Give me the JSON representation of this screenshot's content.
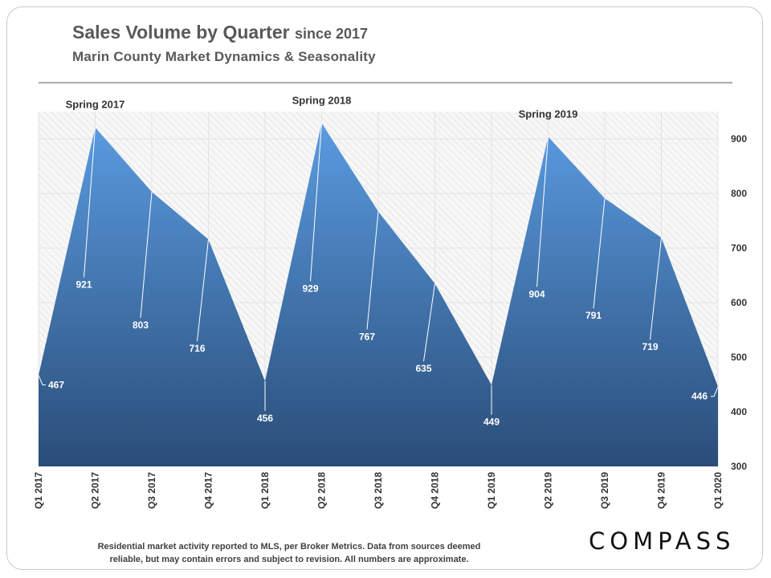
{
  "title": {
    "main": "Sales Volume by Quarter",
    "suffix": "since 2017"
  },
  "subtitle": "Marin County Market Dynamics  &  Seasonality",
  "footnote": {
    "line1": "Residential market activity reported to MLS, per Broker Metrics. Data from sources deemed",
    "line2": "reliable, but may contain errors and subject to revision. All numbers are approximate."
  },
  "logo": "COMPASS",
  "chart_data": {
    "type": "area",
    "title": "Sales Volume by Quarter since 2017",
    "categories": [
      "Q1 2017",
      "Q2 2017",
      "Q3 2017",
      "Q4 2017",
      "Q1 2018",
      "Q2 2018",
      "Q3 2018",
      "Q4 2018",
      "Q1 2019",
      "Q2 2019",
      "Q3 2019",
      "Q4 2019",
      "Q1 2020"
    ],
    "series": [
      {
        "name": "Sales Volume",
        "values": [
          467,
          921,
          803,
          716,
          456,
          929,
          767,
          635,
          449,
          904,
          791,
          719,
          446
        ]
      }
    ],
    "ylim": [
      300,
      950
    ],
    "yticks": [
      300,
      400,
      500,
      600,
      700,
      800,
      900
    ],
    "y_axis_side": "right",
    "annotations": [
      {
        "text": "Spring 2017",
        "category": "Q2 2017"
      },
      {
        "text": "Spring 2018",
        "category": "Q2 2018"
      },
      {
        "text": "Spring 2019",
        "category": "Q2 2019"
      }
    ],
    "colors": {
      "fill_top": "#5a9be0",
      "fill_bottom": "#2a4d78",
      "hatch": "#d6d6d6",
      "grid": "#e3e3e3"
    }
  }
}
